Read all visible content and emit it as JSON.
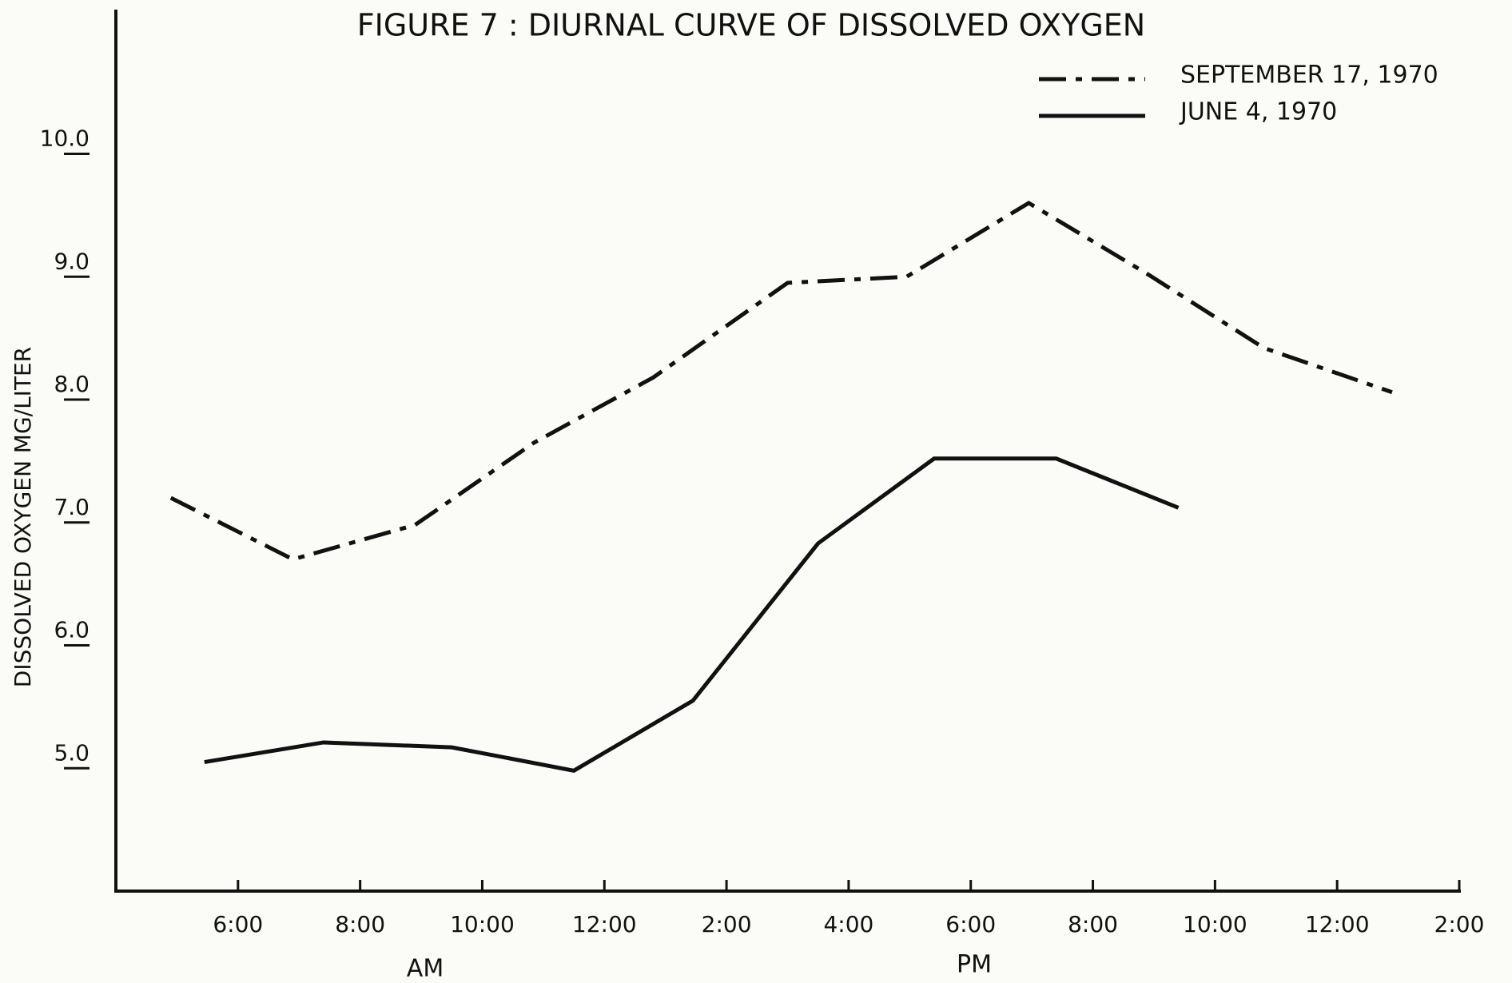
{
  "chart_data": {
    "type": "line",
    "title": "FIGURE 7 : DIURNAL CURVE OF DISSOLVED OXYGEN",
    "y_label": "DISSOLVED OXYGEN MG/LITER",
    "annotations": [
      "AM",
      "PM"
    ],
    "xlim": [
      4,
      26
    ],
    "xticks": [
      {
        "value": 6,
        "label": "6:00"
      },
      {
        "value": 8,
        "label": "8:00"
      },
      {
        "value": 10,
        "label": "10:00"
      },
      {
        "value": 12,
        "label": "12:00"
      },
      {
        "value": 14,
        "label": "2:00"
      },
      {
        "value": 16,
        "label": "4:00"
      },
      {
        "value": 18,
        "label": "6:00"
      },
      {
        "value": 20,
        "label": "8:00"
      },
      {
        "value": 22,
        "label": "10:00"
      },
      {
        "value": 24,
        "label": "12:00"
      },
      {
        "value": 26,
        "label": "2:00"
      }
    ],
    "ylim": [
      4,
      11.2
    ],
    "yticks": [
      {
        "value": 5,
        "label": "5.0"
      },
      {
        "value": 6,
        "label": "6.0"
      },
      {
        "value": 7,
        "label": "7.0"
      },
      {
        "value": 8,
        "label": "8.0"
      },
      {
        "value": 9,
        "label": "9.0"
      },
      {
        "value": 10,
        "label": "10.0"
      }
    ],
    "grid": false,
    "legend": "upper right",
    "series": [
      {
        "name": "SEPTEMBER 17, 1970",
        "color": "#111111",
        "style": "dash-dot",
        "x": [
          4.9,
          6.9,
          8.9,
          10.85,
          12.8,
          15.0,
          16.95,
          18.95,
          20.9,
          22.8,
          24.9
        ],
        "values": [
          7.2,
          6.7,
          6.98,
          7.65,
          8.18,
          8.95,
          9.0,
          9.6,
          9.02,
          8.42,
          8.06
        ]
      },
      {
        "name": "JUNE 4, 1970",
        "color": "#111111",
        "style": "solid",
        "x": [
          5.45,
          7.4,
          9.5,
          11.5,
          13.45,
          15.5,
          17.4,
          19.4,
          21.4
        ],
        "values": [
          5.05,
          5.21,
          5.17,
          4.98,
          5.55,
          6.83,
          7.52,
          7.52,
          7.12
        ]
      }
    ]
  }
}
